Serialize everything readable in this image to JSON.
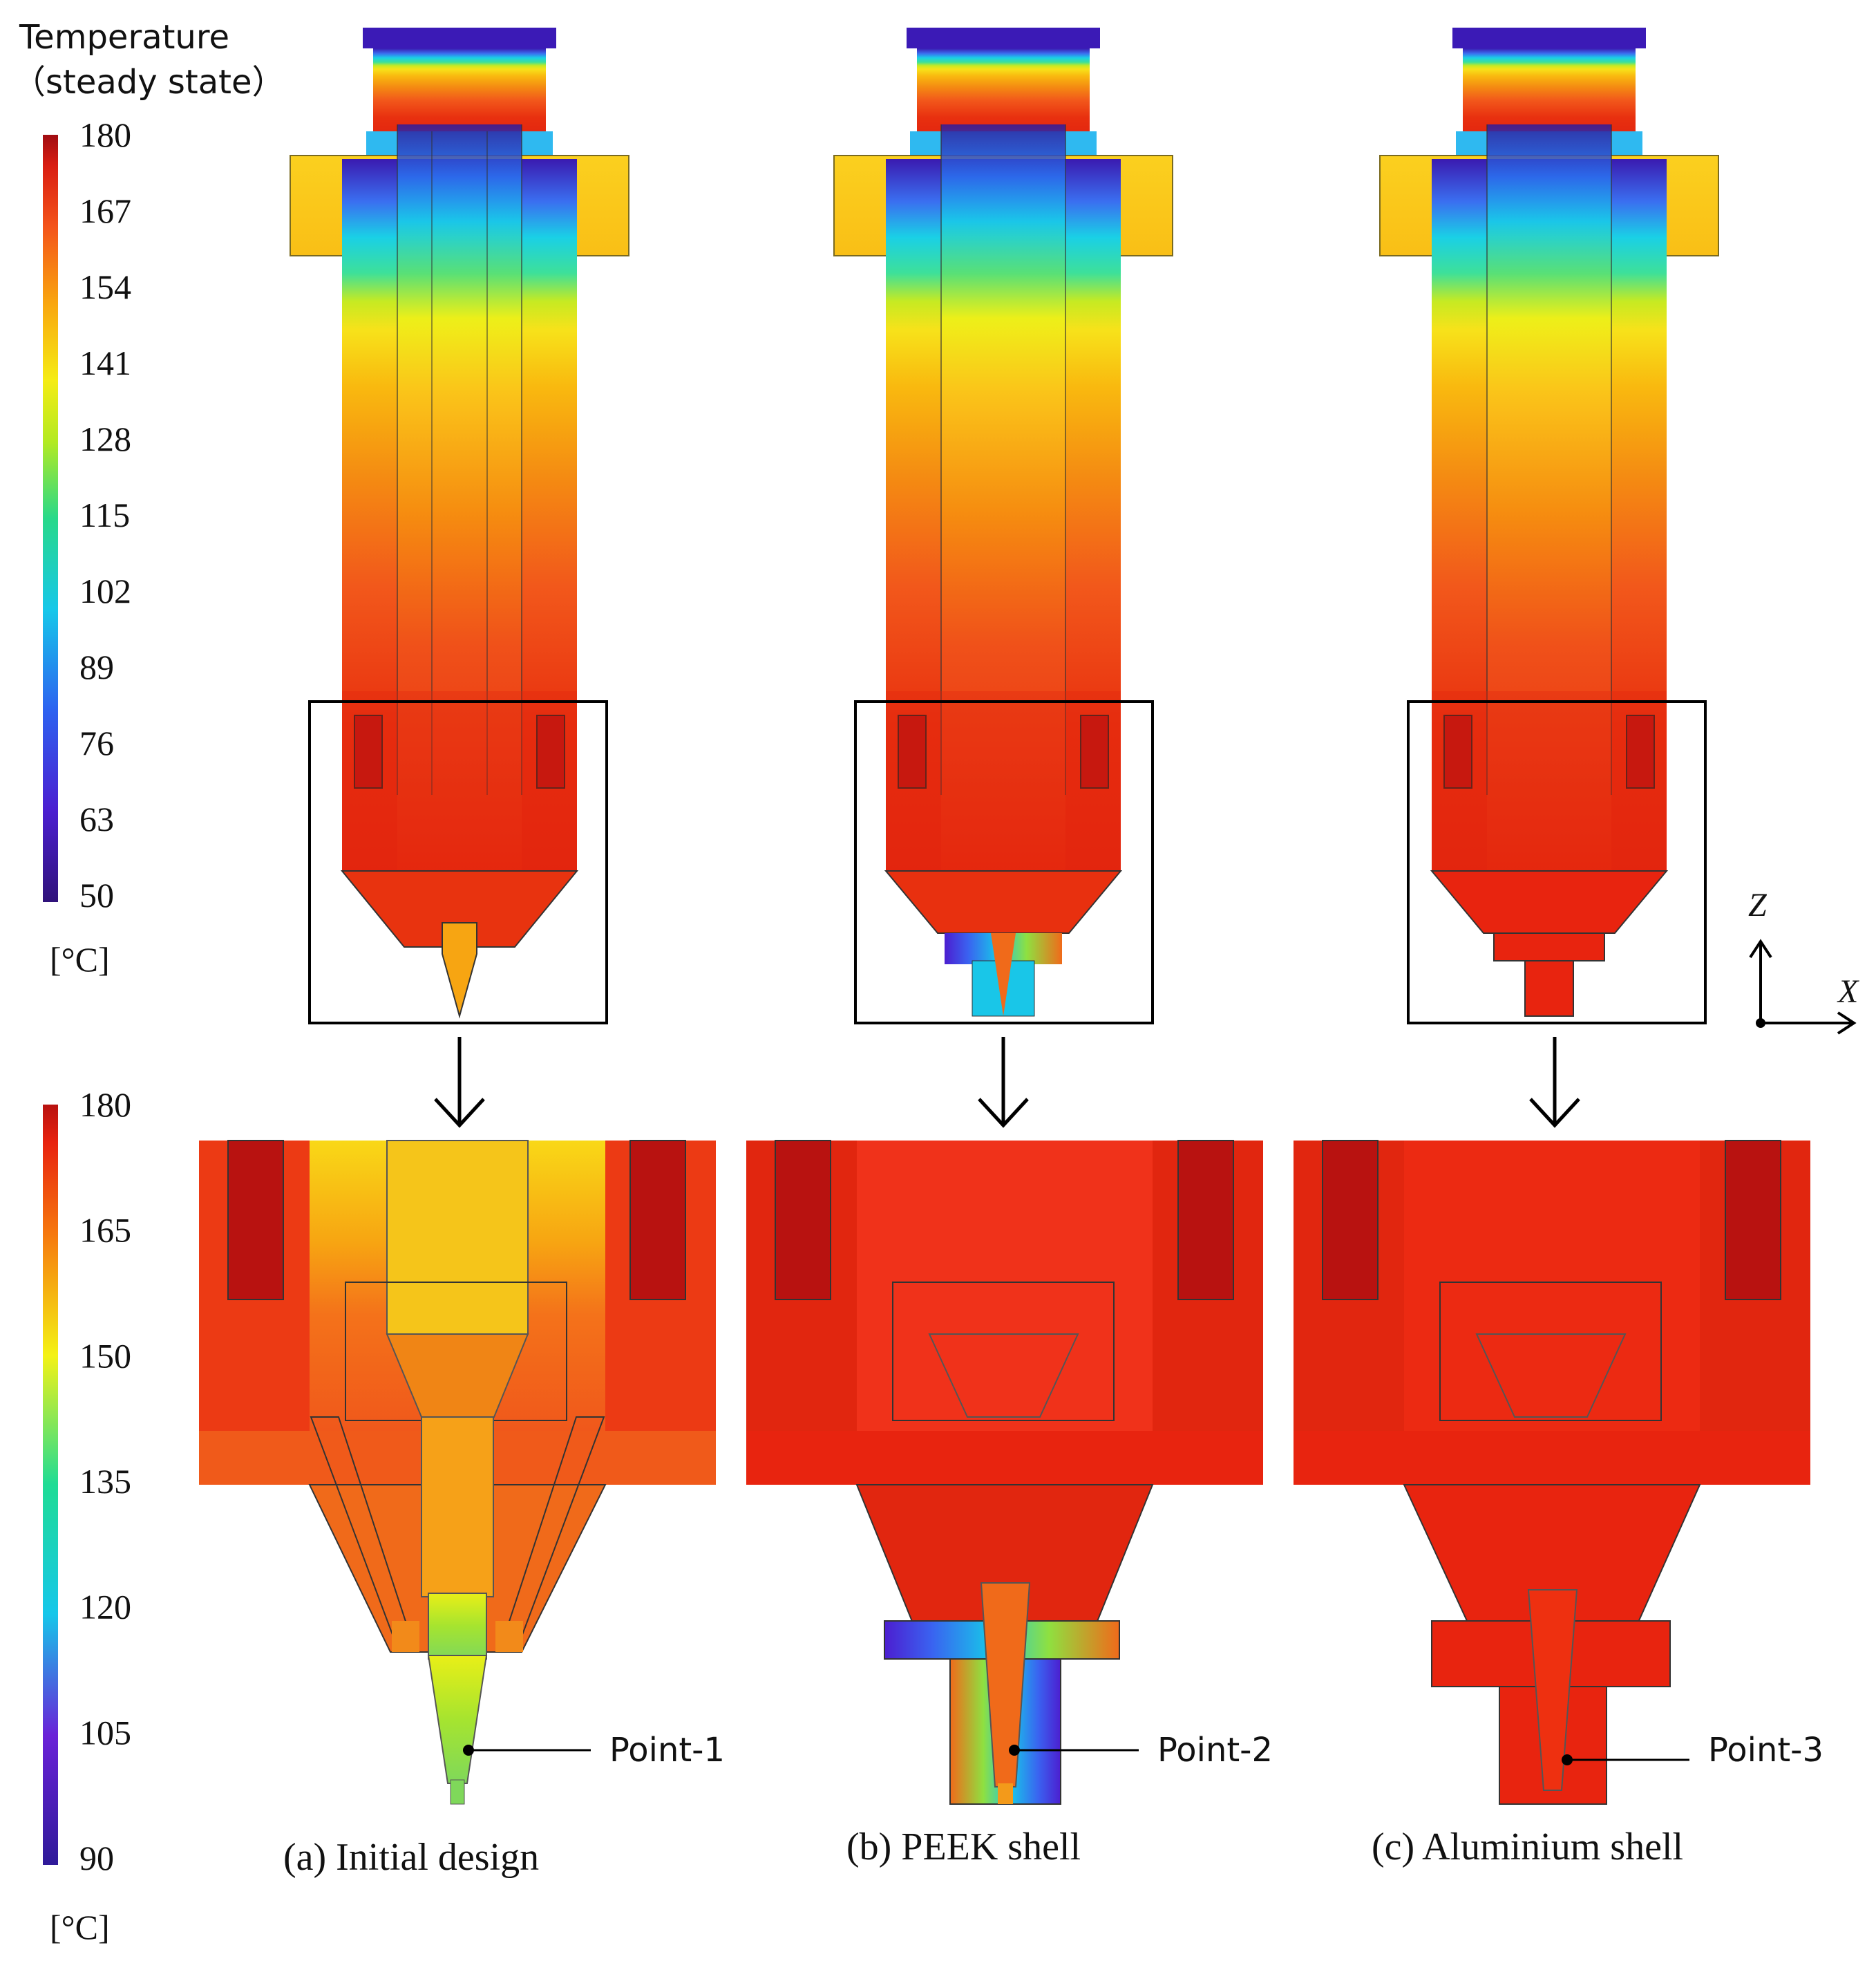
{
  "legend_top": {
    "title_line1": "Temperature",
    "title_line2": "（steady state）",
    "ticks": [
      "180",
      "167",
      "154",
      "141",
      "128",
      "115",
      "102",
      "89",
      "76",
      "63",
      "50"
    ],
    "unit": "[°C]"
  },
  "legend_bottom": {
    "ticks": [
      "180",
      "165",
      "150",
      "135",
      "120",
      "105",
      "90"
    ],
    "unit": "[°C]"
  },
  "axes": {
    "z_label": "Z",
    "x_label": "X"
  },
  "panels": [
    {
      "id": "a",
      "caption": "(a) Initial design",
      "point_label": "Point-1"
    },
    {
      "id": "b",
      "caption": "(b) PEEK shell",
      "point_label": "Point-2"
    },
    {
      "id": "c",
      "caption": "(c) Aluminium shell",
      "point_label": "Point-3"
    }
  ],
  "colors": {
    "dark_red": "#b81210",
    "red": "#e8230f",
    "red_orange": "#f0401a",
    "orange": "#f6780e",
    "light_orange": "#f9a60f",
    "gold": "#fbc91b",
    "yellow": "#f4f215",
    "green": "#40d85d",
    "cyan": "#16c3ea",
    "blue": "#2065f0",
    "violet": "#4f1ad0",
    "indigo": "#2f1a99"
  }
}
